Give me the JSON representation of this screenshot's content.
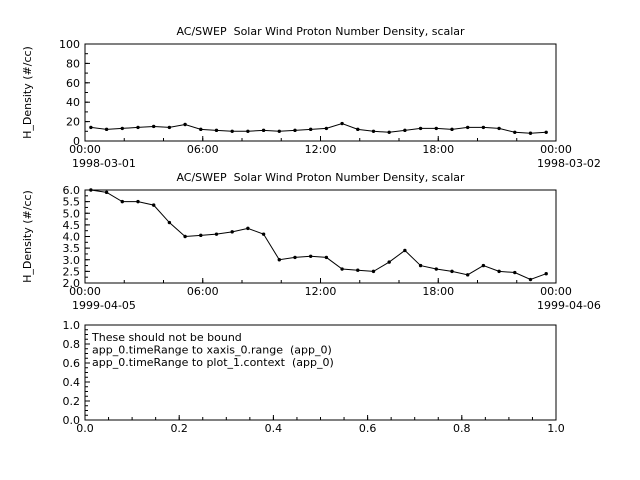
{
  "page": {
    "background": "#ffffff",
    "foreground": "#000000"
  },
  "chart_data": [
    {
      "type": "line",
      "title": "AC/SWEP  Solar Wind Proton Number Density, scalar",
      "ylabel": "H_Density (#/cc)",
      "ylim": [
        0,
        100
      ],
      "ytick_values": [
        0,
        20,
        40,
        60,
        80,
        100
      ],
      "ytick_labels": [
        "0",
        "20",
        "40",
        "60",
        "80",
        "100"
      ],
      "y_minor_step": 10,
      "xlim": [
        0,
        24
      ],
      "xtick_values": [
        0,
        6,
        12,
        18,
        24
      ],
      "xtick_labels": [
        "00:00",
        "06:00",
        "12:00",
        "18:00",
        "00:00"
      ],
      "x_minor_step": 2,
      "date_left": "1998-03-01",
      "date_right": "1998-03-02",
      "marker": "circle",
      "series": {
        "name": "H_Density",
        "x": [
          0.3,
          1.1,
          1.9,
          2.7,
          3.5,
          4.3,
          5.1,
          5.9,
          6.7,
          7.5,
          8.3,
          9.1,
          9.9,
          10.7,
          11.5,
          12.3,
          13.1,
          13.9,
          14.7,
          15.5,
          16.3,
          17.1,
          17.9,
          18.7,
          19.5,
          20.3,
          21.1,
          21.9,
          22.7,
          23.5
        ],
        "y": [
          14,
          12,
          13,
          14,
          15,
          14,
          17,
          12,
          11,
          10,
          10,
          11,
          10,
          11,
          12,
          13,
          18,
          12,
          10,
          9,
          11,
          13,
          13,
          12,
          14,
          14,
          13,
          9,
          8,
          9
        ]
      }
    },
    {
      "type": "line",
      "title": "AC/SWEP  Solar Wind Proton Number Density, scalar",
      "ylabel": "H_Density (#/cc)",
      "ylim": [
        2.0,
        6.0
      ],
      "ytick_values": [
        2.0,
        2.5,
        3.0,
        3.5,
        4.0,
        4.5,
        5.0,
        5.5,
        6.0
      ],
      "ytick_labels": [
        "2.0",
        "2.5",
        "3.0",
        "3.5",
        "4.0",
        "4.5",
        "5.0",
        "5.5",
        "6.0"
      ],
      "y_minor_step": 0.25,
      "xlim": [
        0,
        24
      ],
      "xtick_values": [
        0,
        6,
        12,
        18,
        24
      ],
      "xtick_labels": [
        "00:00",
        "06:00",
        "12:00",
        "18:00",
        "00:00"
      ],
      "x_minor_step": 2,
      "date_left": "1999-04-05",
      "date_right": "1999-04-06",
      "marker": "circle",
      "series": {
        "name": "H_Density",
        "x": [
          0.3,
          1.1,
          1.9,
          2.7,
          3.5,
          4.3,
          5.1,
          5.9,
          6.7,
          7.5,
          8.3,
          9.1,
          9.9,
          10.7,
          11.5,
          12.3,
          13.1,
          13.9,
          14.7,
          15.5,
          16.3,
          17.1,
          17.9,
          18.7,
          19.5,
          20.3,
          21.1,
          21.9,
          22.7,
          23.5
        ],
        "y": [
          6.0,
          5.9,
          5.5,
          5.5,
          5.35,
          4.6,
          4.0,
          4.05,
          4.1,
          4.2,
          4.35,
          4.1,
          3.0,
          3.1,
          3.15,
          3.1,
          2.6,
          2.55,
          2.5,
          2.9,
          3.4,
          2.75,
          2.6,
          2.5,
          2.35,
          2.75,
          2.5,
          2.45,
          2.15,
          2.4
        ]
      }
    },
    {
      "type": "line",
      "title": "",
      "ylabel": "",
      "ylim": [
        0.0,
        1.0
      ],
      "ytick_values": [
        0.0,
        0.2,
        0.4,
        0.6,
        0.8,
        1.0
      ],
      "ytick_labels": [
        "0.0",
        "0.2",
        "0.4",
        "0.6",
        "0.8",
        "1.0"
      ],
      "y_minor_step": 0.05,
      "xlim": [
        0.0,
        1.0
      ],
      "xtick_values": [
        0.0,
        0.2,
        0.4,
        0.6,
        0.8,
        1.0
      ],
      "xtick_labels": [
        "0.0",
        "0.2",
        "0.4",
        "0.6",
        "0.8",
        "1.0"
      ],
      "x_minor_step": 0.05,
      "annotations": [
        "These should not be bound",
        "app_0.timeRange to xaxis_0.range  (app_0)",
        "app_0.timeRange to plot_1.context  (app_0)"
      ]
    }
  ]
}
